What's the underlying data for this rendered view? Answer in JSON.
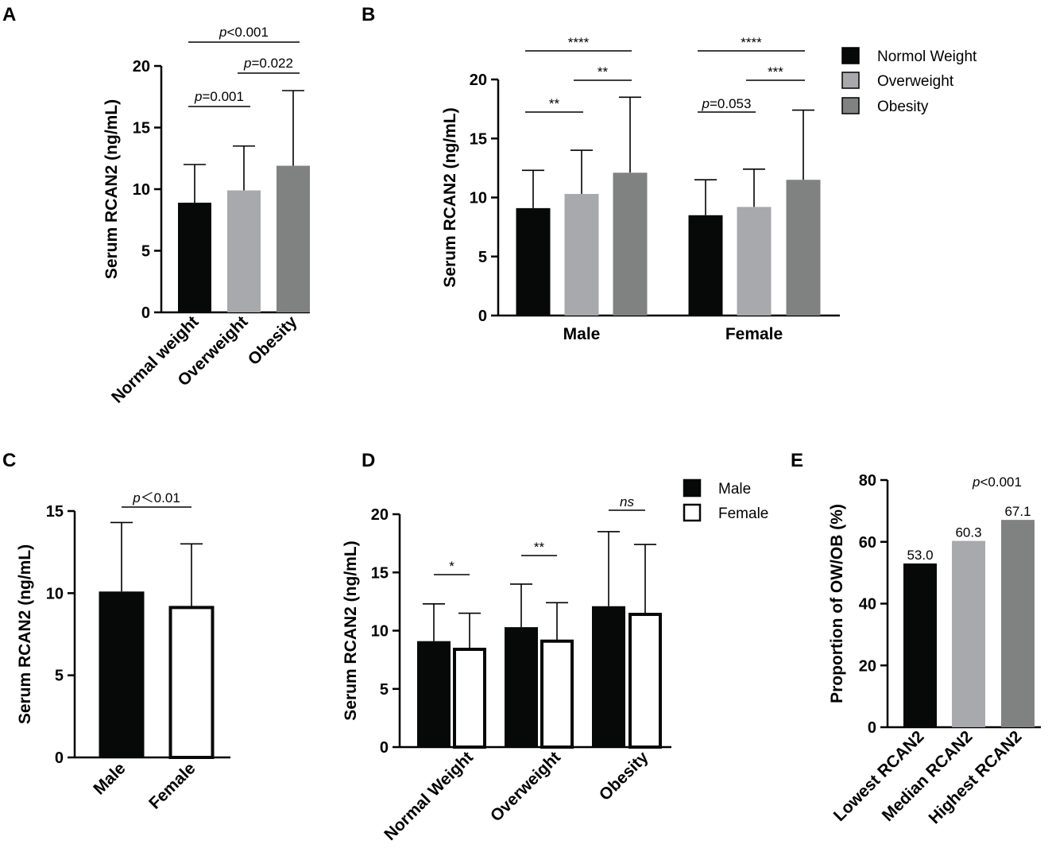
{
  "colors": {
    "black": "#070909",
    "light_gray": "#a7a9ac",
    "dark_gray": "#808282",
    "white": "#ffffff",
    "axis": "#000000"
  },
  "chart_data": [
    {
      "panel": "A",
      "type": "bar",
      "ylabel": "Serum RCAN2 (ng/mL)",
      "ylim": [
        0,
        20
      ],
      "yticks": [
        "0",
        "5",
        "10",
        "15",
        "20"
      ],
      "categories": [
        "Normal weight",
        "Overweight",
        "Obesity"
      ],
      "values": [
        8.9,
        9.9,
        11.9
      ],
      "errors": [
        3.1,
        3.6,
        6.1
      ],
      "comparisons": [
        {
          "from": 0,
          "to": 1,
          "prefix": "p",
          "rest": "=0.001",
          "level": 0
        },
        {
          "from": 1,
          "to": 2,
          "prefix": "p",
          "rest": "=0.022",
          "level": 1
        },
        {
          "from": 0,
          "to": 2,
          "prefix": "p",
          "rest": "<0.001",
          "level": 2
        }
      ]
    },
    {
      "panel": "B",
      "type": "bar",
      "ylabel": "Serum RCAN2 (ng/mL)",
      "ylim": [
        0,
        20
      ],
      "yticks": [
        "0",
        "5",
        "10",
        "15",
        "20"
      ],
      "groups": [
        "Male",
        "Female"
      ],
      "series": [
        {
          "name": "Normol Weight",
          "values": [
            9.1,
            8.5
          ],
          "errors": [
            3.2,
            3.0
          ]
        },
        {
          "name": "Overweight",
          "values": [
            10.3,
            9.2
          ],
          "errors": [
            3.7,
            3.2
          ]
        },
        {
          "name": "Obesity",
          "values": [
            12.1,
            11.5
          ],
          "errors": [
            6.4,
            5.9
          ]
        }
      ],
      "comparisons": [
        {
          "group": 0,
          "from": 0,
          "to": 1,
          "prefix": "",
          "rest": "**",
          "level": 0
        },
        {
          "group": 0,
          "from": 1,
          "to": 2,
          "prefix": "",
          "rest": "**",
          "level": 1
        },
        {
          "group": 0,
          "from": 0,
          "to": 2,
          "prefix": "",
          "rest": "****",
          "level": 2
        },
        {
          "group": 1,
          "from": 0,
          "to": 1,
          "prefix": "p",
          "rest": "=0.053",
          "level": 0
        },
        {
          "group": 1,
          "from": 1,
          "to": 2,
          "prefix": "",
          "rest": "***",
          "level": 1
        },
        {
          "group": 1,
          "from": 0,
          "to": 2,
          "prefix": "",
          "rest": "****",
          "level": 2
        }
      ],
      "legend": [
        "Normol Weight",
        "Overweight",
        "Obesity"
      ]
    },
    {
      "panel": "C",
      "type": "bar",
      "ylabel": "Serum RCAN2 (ng/mL)",
      "ylim": [
        0,
        15
      ],
      "yticks": [
        "0",
        "5",
        "10",
        "15"
      ],
      "categories": [
        "Male",
        "Female"
      ],
      "values": [
        10.1,
        9.2
      ],
      "errors": [
        4.2,
        3.8
      ],
      "comparisons": [
        {
          "from": 0,
          "to": 1,
          "prefix": "p",
          "rest": "＜0.01",
          "level": 0
        }
      ]
    },
    {
      "panel": "D",
      "type": "bar",
      "ylabel": "Serum RCAN2 (ng/mL)",
      "ylim": [
        0,
        20
      ],
      "yticks": [
        "0",
        "5",
        "10",
        "15",
        "20"
      ],
      "groups": [
        "Normal Weight",
        "Overweight",
        "Obesity"
      ],
      "series": [
        {
          "name": "Male",
          "values": [
            9.1,
            10.3,
            12.1
          ],
          "errors": [
            3.2,
            3.7,
            6.4
          ]
        },
        {
          "name": "Female",
          "values": [
            8.5,
            9.2,
            11.5
          ],
          "errors": [
            3.0,
            3.2,
            5.9
          ]
        }
      ],
      "comparisons": [
        {
          "group": 0,
          "prefix": "",
          "rest": "*",
          "italic": false
        },
        {
          "group": 1,
          "prefix": "",
          "rest": "**",
          "italic": false
        },
        {
          "group": 2,
          "prefix": "",
          "rest": "ns",
          "italic": true
        }
      ],
      "legend": [
        "Male",
        "Female"
      ]
    },
    {
      "panel": "E",
      "type": "bar",
      "ylabel": "Proportion of OW/OB (%)",
      "ylim": [
        0,
        80
      ],
      "yticks": [
        "0",
        "20",
        "40",
        "60",
        "80"
      ],
      "categories": [
        "Lowest RCAN2",
        "Median RCAN2",
        "Highest RCAN2"
      ],
      "values": [
        53.0,
        60.3,
        67.1
      ],
      "value_labels": [
        "53.0",
        "60.3",
        "67.1"
      ],
      "annotation": {
        "prefix": "p",
        "rest": "<0.001"
      }
    }
  ]
}
